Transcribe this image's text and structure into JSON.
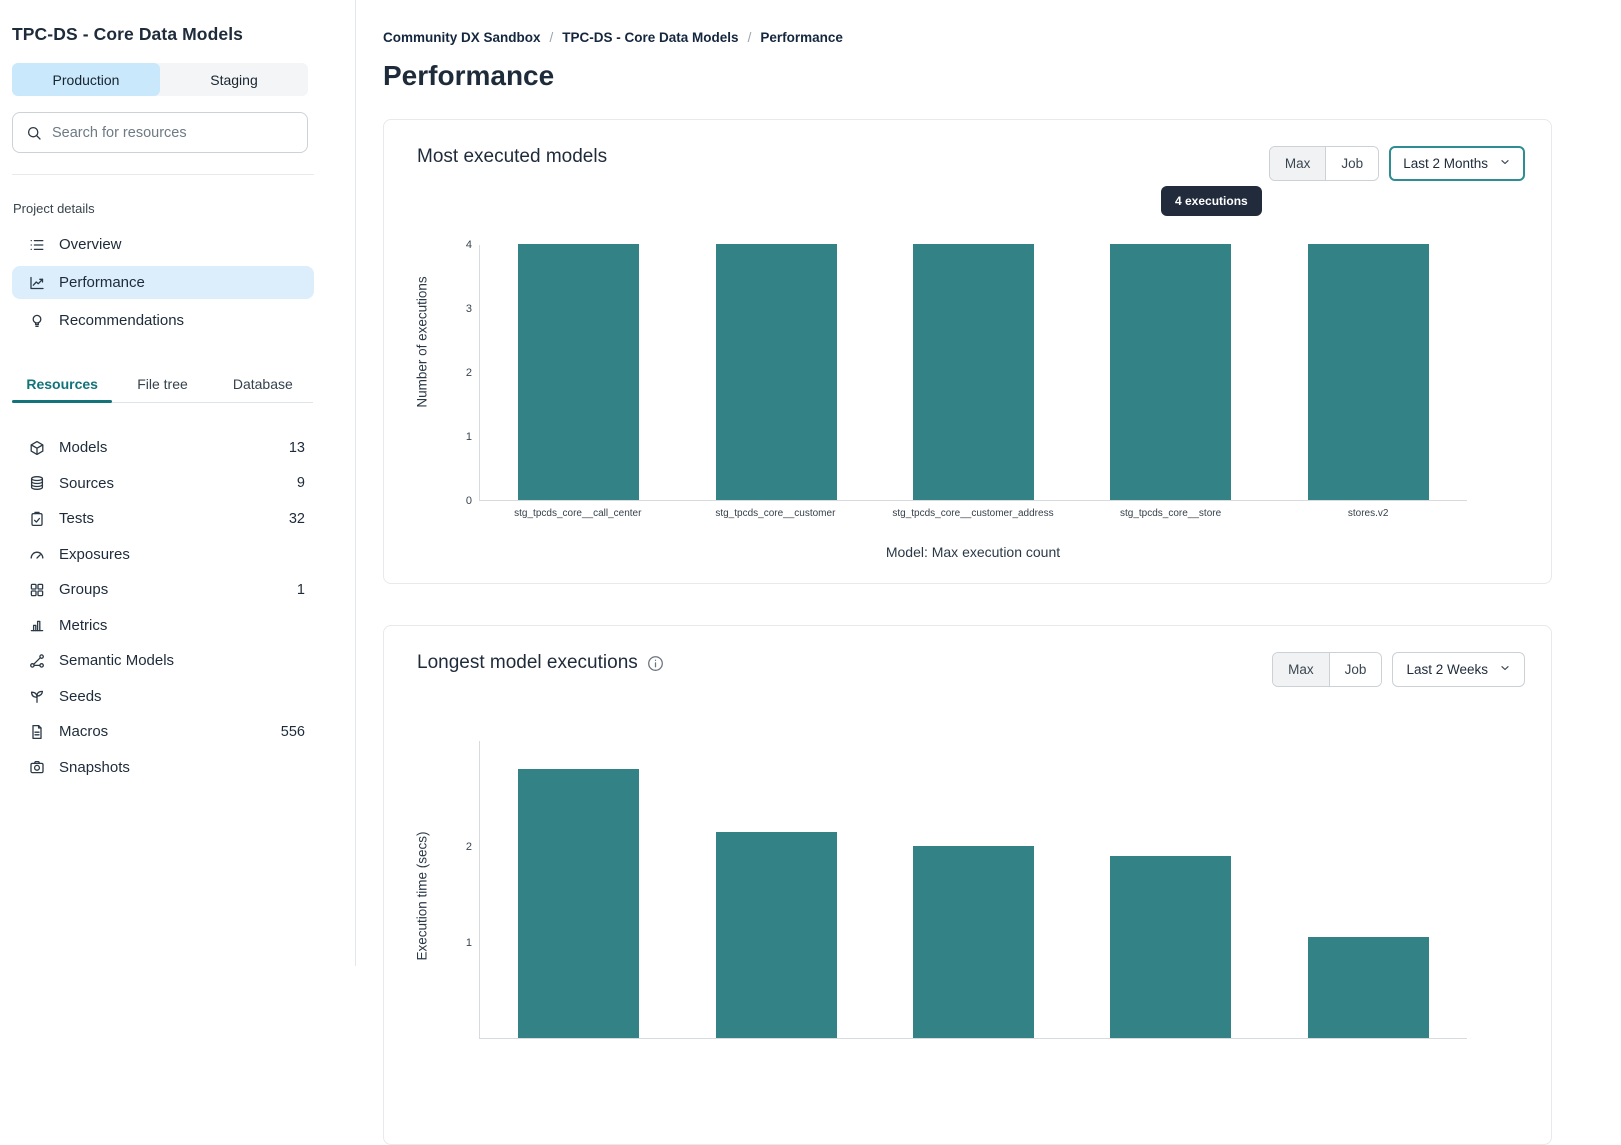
{
  "sidebar": {
    "title": "TPC-DS - Core Data Models",
    "env_tabs": [
      {
        "label": "Production",
        "active": true
      },
      {
        "label": "Staging",
        "active": false
      }
    ],
    "search_placeholder": "Search for resources",
    "section_label": "Project details",
    "nav": [
      {
        "label": "Overview",
        "icon": "overview-icon",
        "active": false
      },
      {
        "label": "Performance",
        "icon": "performance-icon",
        "active": true
      },
      {
        "label": "Recommendations",
        "icon": "recommendations-icon",
        "active": false
      }
    ],
    "resource_tabs": [
      {
        "label": "Resources",
        "active": true
      },
      {
        "label": "File tree",
        "active": false
      },
      {
        "label": "Database",
        "active": false
      }
    ],
    "resources": [
      {
        "label": "Models",
        "icon": "models-icon",
        "count": "13"
      },
      {
        "label": "Sources",
        "icon": "sources-icon",
        "count": "9"
      },
      {
        "label": "Tests",
        "icon": "tests-icon",
        "count": "32"
      },
      {
        "label": "Exposures",
        "icon": "exposures-icon",
        "count": ""
      },
      {
        "label": "Groups",
        "icon": "groups-icon",
        "count": "1"
      },
      {
        "label": "Metrics",
        "icon": "metrics-icon",
        "count": ""
      },
      {
        "label": "Semantic Models",
        "icon": "semantic-models-icon",
        "count": ""
      },
      {
        "label": "Seeds",
        "icon": "seeds-icon",
        "count": ""
      },
      {
        "label": "Macros",
        "icon": "macros-icon",
        "count": "556"
      },
      {
        "label": "Snapshots",
        "icon": "snapshots-icon",
        "count": ""
      }
    ]
  },
  "breadcrumb": {
    "items": [
      "Community DX Sandbox",
      "TPC-DS - Core Data Models",
      "Performance"
    ],
    "separator": "/"
  },
  "page_title": "Performance",
  "cards": [
    {
      "title": "Most executed models",
      "toggle": [
        "Max",
        "Job"
      ],
      "toggle_active": "Max",
      "range": "Last 2 Months",
      "range_focused": true
    },
    {
      "title": "Longest model executions",
      "toggle": [
        "Max",
        "Job"
      ],
      "toggle_active": "Max",
      "range": "Last 2 Weeks",
      "range_focused": false
    }
  ],
  "colors": {
    "bar": "#338286",
    "accent_teal": "#12737b",
    "selected_blue": "#dcedfc",
    "env_tab_blue": "#c9e8fc",
    "tooltip_bg": "#212b3c"
  },
  "chart_data": [
    {
      "type": "bar",
      "title": "Most executed models",
      "categories": [
        "stg_tpcds_core__call_center",
        "stg_tpcds_core__customer",
        "stg_tpcds_core__customer_address",
        "stg_tpcds_core__store",
        "stores.v2"
      ],
      "values": [
        4,
        4,
        4,
        4,
        4
      ],
      "ylabel": "Number of executions",
      "xlabel": "Model: Max execution count",
      "ylim": [
        0,
        4
      ],
      "yticks": [
        0,
        1,
        2,
        3,
        4
      ],
      "grid": false,
      "legend": "none",
      "tooltip": "4 executions"
    },
    {
      "type": "bar",
      "title": "Longest model executions",
      "categories": [],
      "values": [
        2.8,
        2.15,
        2.0,
        1.9,
        1.05
      ],
      "ylabel": "Execution time (secs)",
      "xlabel": "",
      "ylim": [
        0,
        3
      ],
      "yticks": [
        1,
        2
      ],
      "grid": false,
      "legend": "none",
      "clipped_bottom": true
    }
  ]
}
